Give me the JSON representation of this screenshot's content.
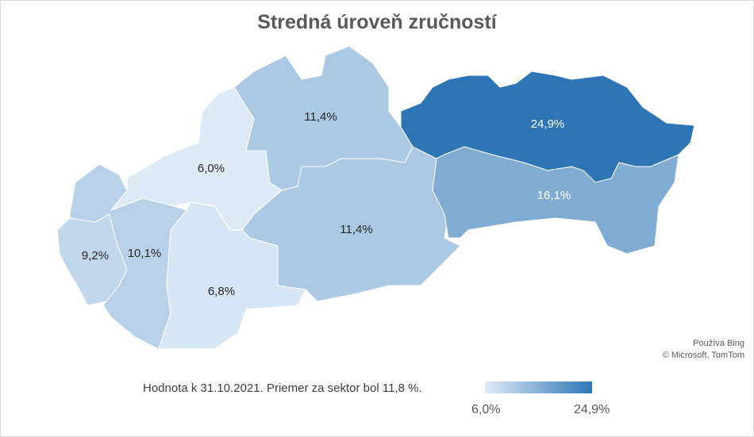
{
  "chart_data": {
    "type": "choropleth-map",
    "title": "Stredná úroveň zručností",
    "regions": [
      {
        "value": 9.2,
        "label": "9,2%"
      },
      {
        "value": 10.1,
        "label": "10,1%"
      },
      {
        "value": 6.0,
        "label": "6,0%"
      },
      {
        "value": 6.8,
        "label": "6,8%"
      },
      {
        "value": 11.4,
        "label": "11,4%"
      },
      {
        "value": 11.4,
        "label": "11,4%"
      },
      {
        "value": 24.9,
        "label": "24,9%"
      },
      {
        "value": 16.1,
        "label": "16,1%"
      }
    ],
    "scale": {
      "min": 6.0,
      "max": 24.9,
      "min_label": "6,0%",
      "max_label": "24,9%",
      "min_color": "#deebf7",
      "max_color": "#2e75b6"
    },
    "note": "Hodnota k 31.10.2021. Priemer za sektor bol 11,8 %.",
    "credit": [
      "Používa Bing",
      "© Microsoft, TomTom"
    ]
  }
}
